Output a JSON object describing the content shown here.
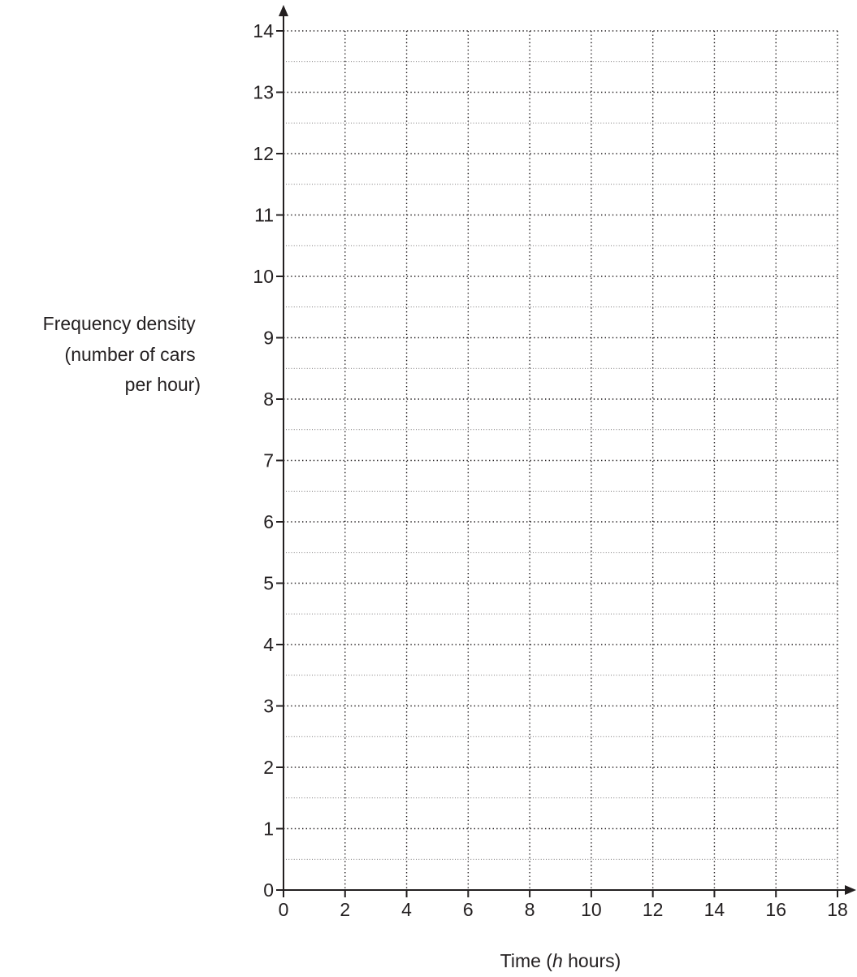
{
  "chart_data": {
    "type": "bar",
    "title": "",
    "xlabel": {
      "prefix": "Time (",
      "variable": "h",
      "suffix": " hours)"
    },
    "ylabel": [
      "Frequency density",
      "(number of cars",
      "per hour)"
    ],
    "xlim": [
      0,
      18
    ],
    "ylim": [
      0,
      14
    ],
    "x_ticks": [
      0,
      2,
      4,
      6,
      8,
      10,
      12,
      14,
      16,
      18
    ],
    "y_ticks": [
      0,
      1,
      2,
      3,
      4,
      5,
      6,
      7,
      8,
      9,
      10,
      11,
      12,
      13,
      14
    ],
    "y_minor_step": 0.5,
    "grid": true,
    "series": []
  },
  "colors": {
    "ink": "#231f20",
    "background": "#ffffff"
  }
}
